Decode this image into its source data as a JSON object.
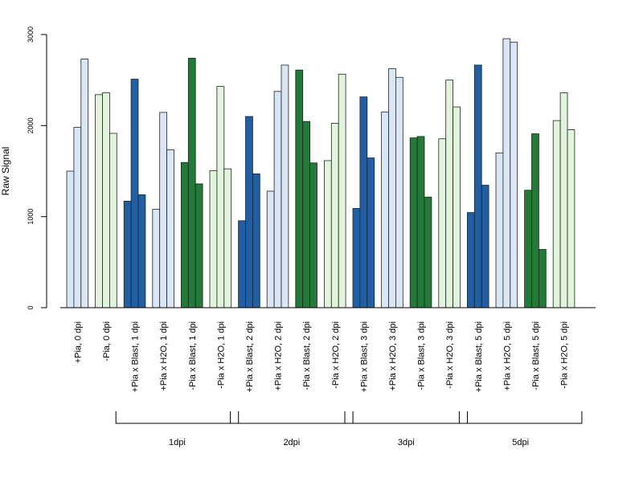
{
  "chart_data": {
    "type": "bar",
    "ylabel": "Raw Signal",
    "ylim": [
      0,
      3000
    ],
    "y_ticks": [
      "0",
      "1000",
      "2000",
      "3000"
    ],
    "bars_per_group": 3,
    "categories": [
      "+Pia, 0 dpi",
      "-Pia, 0 dpi",
      "+Pia x Blast, 1 dpi",
      "+Pia x H2O, 1 dpi",
      "-Pia x Blast, 1 dpi",
      "-Pia x H2O, 1 dpi",
      "+Pia x Blast, 2 dpi",
      "+Pia x H2O, 2 dpi",
      "-Pia x Blast, 2 dpi",
      "-Pia x H2O, 2 dpi",
      "+Pia x Blast, 3 dpi",
      "+Pia x H2O, 3 dpi",
      "-Pia x Blast, 3 dpi",
      "-Pia x H2O, 3 dpi",
      "+Pia x Blast, 5 dpi",
      "+Pia x H2O, 5 dpi",
      "-Pia x Blast, 5 dpi",
      "-Pia x H2O, 5 dpi"
    ],
    "values": [
      [
        1500,
        1980,
        2730
      ],
      [
        2340,
        2360,
        1915
      ],
      [
        1170,
        2510,
        1240
      ],
      [
        1080,
        2145,
        1735
      ],
      [
        1595,
        2740,
        1360
      ],
      [
        1505,
        2430,
        1525
      ],
      [
        955,
        2100,
        1470
      ],
      [
        1280,
        2375,
        2665
      ],
      [
        2610,
        2045,
        1590
      ],
      [
        1615,
        2025,
        2565
      ],
      [
        1090,
        2315,
        1645
      ],
      [
        2150,
        2625,
        2530
      ],
      [
        1865,
        1880,
        1215
      ],
      [
        1855,
        2500,
        2205
      ],
      [
        1045,
        2665,
        1345
      ],
      [
        1700,
        2955,
        2915
      ],
      [
        1290,
        1910,
        640
      ],
      [
        2055,
        2360,
        1955
      ]
    ],
    "colors": {
      "plus_pia_h2o": "#d8e6f5",
      "minus_pia_h2o": "#e0f5dc",
      "plus_pia_blast": "#1f5fa6",
      "minus_pia_blast": "#217a36"
    },
    "bar_colors": [
      "#d8e6f5",
      "#e0f5dc",
      "#1f5fa6",
      "#d8e6f5",
      "#217a36",
      "#e0f5dc",
      "#1f5fa6",
      "#d8e6f5",
      "#217a36",
      "#e0f5dc",
      "#1f5fa6",
      "#d8e6f5",
      "#217a36",
      "#e0f5dc",
      "#1f5fa6",
      "#d8e6f5",
      "#217a36",
      "#e0f5dc"
    ],
    "time_groups": [
      {
        "label": "1dpi",
        "first_category": 2,
        "last_category": 5
      },
      {
        "label": "2dpi",
        "first_category": 6,
        "last_category": 9
      },
      {
        "label": "3dpi",
        "first_category": 10,
        "last_category": 13
      },
      {
        "label": "5dpi",
        "first_category": 14,
        "last_category": 17
      }
    ]
  }
}
